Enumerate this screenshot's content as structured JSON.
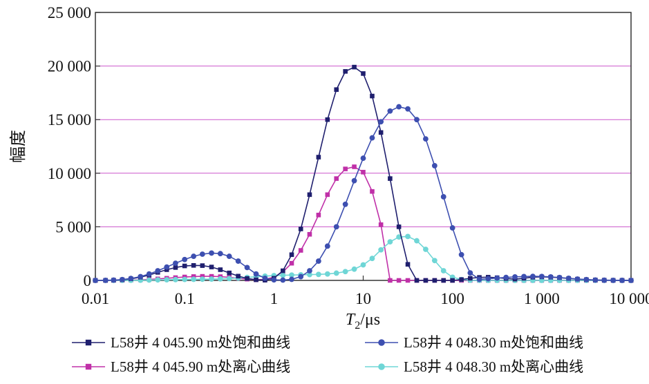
{
  "chart_data": {
    "type": "line",
    "x_scale": "log",
    "xlim": [
      0.01,
      10000
    ],
    "ylim": [
      0,
      25000
    ],
    "xlabel": {
      "main": "T",
      "sub": "2",
      "unit": "/μs"
    },
    "ylabel": "幅度",
    "grid": {
      "horizontal": true,
      "vertical": false,
      "color": "#cc55cc"
    },
    "x_ticks": [
      {
        "value": 0.01,
        "label": "0.01"
      },
      {
        "value": 0.1,
        "label": "0.1"
      },
      {
        "value": 1,
        "label": "1"
      },
      {
        "value": 10,
        "label": "10"
      },
      {
        "value": 100,
        "label": "100"
      },
      {
        "value": 1000,
        "label": "1 000"
      },
      {
        "value": 10000,
        "label": "10 000"
      }
    ],
    "y_ticks": [
      {
        "value": 0,
        "label": "0"
      },
      {
        "value": 5000,
        "label": "5 000"
      },
      {
        "value": 10000,
        "label": "10 000"
      },
      {
        "value": 15000,
        "label": "15 000"
      },
      {
        "value": 20000,
        "label": "20 000"
      },
      {
        "value": 25000,
        "label": "25 000"
      }
    ],
    "legend_position": "bottom",
    "series": [
      {
        "name": "L58井 4 045.90 m处饱和曲线",
        "color": "#1f1f6e",
        "marker": "square",
        "x": [
          0.01,
          0.013,
          0.016,
          0.02,
          0.025,
          0.032,
          0.04,
          0.05,
          0.063,
          0.079,
          0.1,
          0.126,
          0.158,
          0.2,
          0.251,
          0.316,
          0.398,
          0.501,
          0.631,
          0.794,
          1,
          1.26,
          1.58,
          2,
          2.51,
          3.16,
          3.98,
          5.01,
          6.31,
          7.94,
          10,
          12.6,
          15.8,
          20,
          25.1,
          31.6,
          39.8,
          50.1,
          63.1,
          79.4,
          100,
          126,
          158,
          200,
          251,
          316,
          398,
          501,
          631,
          794,
          1000,
          1260,
          1580,
          2000,
          2510,
          3160,
          3980,
          5010,
          6310,
          7940,
          10000
        ],
        "y": [
          0,
          5,
          20,
          60,
          150,
          300,
          500,
          750,
          1000,
          1200,
          1350,
          1400,
          1380,
          1250,
          1000,
          700,
          400,
          180,
          60,
          20,
          200,
          900,
          2400,
          4800,
          8000,
          11500,
          15000,
          17800,
          19500,
          19900,
          19300,
          17200,
          13800,
          9500,
          5000,
          1500,
          0,
          0,
          0,
          0,
          0,
          80,
          200,
          280,
          300,
          250,
          180,
          120,
          200,
          300,
          330,
          300,
          250,
          180,
          120,
          70,
          40,
          20,
          10,
          5,
          0
        ]
      },
      {
        "name": "L58井 4 048.30 m处饱和曲线",
        "color": "#3d4fb0",
        "marker": "circle",
        "x": [
          0.01,
          0.013,
          0.016,
          0.02,
          0.025,
          0.032,
          0.04,
          0.05,
          0.063,
          0.079,
          0.1,
          0.126,
          0.158,
          0.2,
          0.251,
          0.316,
          0.398,
          0.501,
          0.631,
          0.794,
          1,
          1.26,
          1.58,
          2,
          2.51,
          3.16,
          3.98,
          5.01,
          6.31,
          7.94,
          10,
          12.6,
          15.8,
          20,
          25.1,
          31.6,
          39.8,
          50.1,
          63.1,
          79.4,
          100,
          126,
          158,
          200,
          251,
          316,
          398,
          501,
          631,
          794,
          1000,
          1260,
          1580,
          2000,
          2510,
          3160,
          3980,
          5010,
          6310,
          7940,
          10000
        ],
        "y": [
          0,
          10,
          30,
          80,
          180,
          350,
          600,
          900,
          1250,
          1600,
          1950,
          2250,
          2450,
          2550,
          2500,
          2250,
          1800,
          1200,
          600,
          200,
          50,
          30,
          100,
          350,
          900,
          1800,
          3200,
          5000,
          7100,
          9300,
          11400,
          13300,
          14800,
          15800,
          16200,
          16000,
          15000,
          13200,
          10700,
          7800,
          4900,
          2400,
          700,
          100,
          150,
          220,
          280,
          330,
          360,
          380,
          370,
          330,
          270,
          200,
          130,
          80,
          40,
          20,
          10,
          5,
          0
        ]
      },
      {
        "name": "L58井 4 045.90 m处离心曲线",
        "color": "#c030a8",
        "marker": "square",
        "x": [
          0.01,
          0.013,
          0.016,
          0.02,
          0.025,
          0.032,
          0.04,
          0.05,
          0.063,
          0.079,
          0.1,
          0.126,
          0.158,
          0.2,
          0.251,
          0.316,
          0.398,
          0.501,
          0.631,
          0.794,
          1,
          1.26,
          1.58,
          2,
          2.51,
          3.16,
          3.98,
          5.01,
          6.31,
          7.94,
          10,
          12.6,
          15.8,
          20,
          25.1,
          31.6,
          39.8,
          50.1,
          63.1,
          79.4,
          100,
          126,
          158,
          200,
          251,
          316,
          398,
          501,
          631,
          794,
          1000,
          1260,
          1580,
          2000,
          2510,
          3160,
          3980,
          5010,
          6310,
          7940,
          10000
        ],
        "y": [
          0,
          0,
          5,
          10,
          25,
          50,
          90,
          140,
          200,
          260,
          320,
          360,
          380,
          380,
          350,
          290,
          200,
          120,
          60,
          100,
          300,
          800,
          1600,
          2800,
          4300,
          6100,
          8000,
          9500,
          10400,
          10600,
          10100,
          8300,
          5200,
          0,
          0,
          0,
          0,
          0,
          0,
          0,
          0,
          0,
          0,
          0,
          0,
          0,
          0,
          0,
          0,
          0,
          0,
          0,
          0,
          0,
          0,
          0,
          0,
          0,
          0,
          0,
          0
        ]
      },
      {
        "name": "L58井 4 048.30 m处离心曲线",
        "color": "#6fd6d6",
        "marker": "circle",
        "x": [
          0.01,
          0.013,
          0.016,
          0.02,
          0.025,
          0.032,
          0.04,
          0.05,
          0.063,
          0.079,
          0.1,
          0.126,
          0.158,
          0.2,
          0.251,
          0.316,
          0.398,
          0.501,
          0.631,
          0.794,
          1,
          1.26,
          1.58,
          2,
          2.51,
          3.16,
          3.98,
          5.01,
          6.31,
          7.94,
          10,
          12.6,
          15.8,
          20,
          25.1,
          31.6,
          39.8,
          50.1,
          63.1,
          79.4,
          100,
          126,
          158,
          200,
          251,
          316,
          398,
          501,
          631,
          794,
          1000,
          1260,
          1580,
          2000,
          2510,
          3160,
          3980,
          5010,
          6310,
          7940,
          10000
        ],
        "y": [
          0,
          0,
          0,
          5,
          10,
          20,
          30,
          45,
          60,
          75,
          90,
          100,
          110,
          120,
          140,
          170,
          220,
          280,
          340,
          400,
          450,
          480,
          500,
          520,
          540,
          560,
          600,
          680,
          820,
          1050,
          1450,
          2050,
          2850,
          3600,
          4050,
          4100,
          3700,
          2900,
          1850,
          900,
          300,
          80,
          20,
          5,
          0,
          0,
          0,
          0,
          0,
          0,
          0,
          0,
          0,
          0,
          0,
          0,
          0,
          0,
          0,
          0,
          0
        ]
      }
    ]
  }
}
